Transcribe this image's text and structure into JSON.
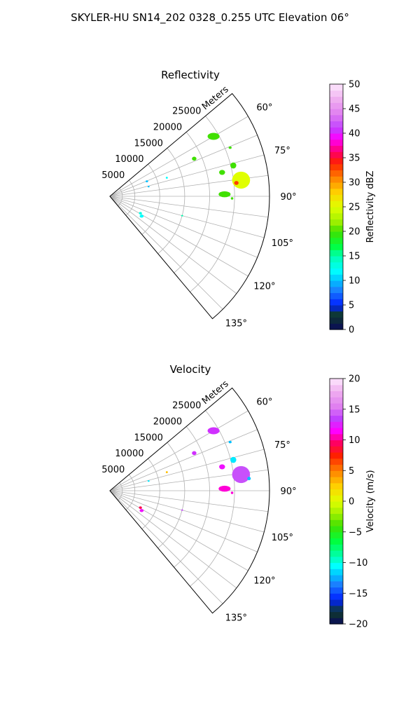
{
  "figure": {
    "suptitle": "SKYLER-HU  SN14_202  0328_0.255 UTC Elevation 06°"
  },
  "colors": {
    "grid": "#b0b0b0",
    "axis_line": "#000000"
  },
  "chart_data": [
    {
      "type": "polar-sector",
      "title": "Reflectivity",
      "radial_label": "Meters",
      "radial_ticks": [
        5000,
        10000,
        15000,
        20000,
        25000
      ],
      "radial_tick_labels": [
        "5000",
        "10000",
        "15000",
        "20000",
        "25000"
      ],
      "rlim": [
        0,
        32000
      ],
      "theta_ticks": [
        60,
        75,
        90,
        105,
        120,
        135
      ],
      "theta_tick_labels": [
        "60°",
        "75°",
        "90°",
        "105°",
        "120°",
        "135°"
      ],
      "theta_range_deg": [
        50,
        140
      ],
      "theta_direction": "clockwise-from-north",
      "grid": true,
      "colorbar": {
        "label": "Reflectivity dBZ",
        "range": [
          0,
          50
        ],
        "ticks": [
          0,
          5,
          10,
          15,
          20,
          25,
          30,
          35,
          40,
          45,
          50
        ],
        "tick_labels": [
          "0",
          "5",
          "10",
          "15",
          "20",
          "25",
          "30",
          "35",
          "40",
          "45",
          "50"
        ],
        "stops": [
          {
            "value": 0,
            "color": "#0a0a5a"
          },
          {
            "value": 3,
            "color": "#0f3a2a"
          },
          {
            "value": 5,
            "color": "#0020ff"
          },
          {
            "value": 8,
            "color": "#1a80ff"
          },
          {
            "value": 10,
            "color": "#00c0ff"
          },
          {
            "value": 12,
            "color": "#00ffff"
          },
          {
            "value": 15,
            "color": "#00ffb0"
          },
          {
            "value": 17,
            "color": "#00ff40"
          },
          {
            "value": 20,
            "color": "#40e000"
          },
          {
            "value": 22,
            "color": "#a0f000"
          },
          {
            "value": 25,
            "color": "#e0ff00"
          },
          {
            "value": 28,
            "color": "#ffd000"
          },
          {
            "value": 31,
            "color": "#ff8000"
          },
          {
            "value": 34,
            "color": "#ff2000"
          },
          {
            "value": 36,
            "color": "#ff0060"
          },
          {
            "value": 39,
            "color": "#ff00ff"
          },
          {
            "value": 41,
            "color": "#c040ff"
          },
          {
            "value": 44,
            "color": "#e080f0"
          },
          {
            "value": 47,
            "color": "#f0b0f0"
          },
          {
            "value": 50,
            "color": "#fde8fd"
          }
        ]
      },
      "echoes": [
        {
          "azimuth_deg": 60,
          "range_m": 24000,
          "width_m": 2400,
          "height_m": 1400,
          "value": 20
        },
        {
          "azimuth_deg": 83,
          "range_m": 26500,
          "width_m": 3600,
          "height_m": 3400,
          "value": 25
        },
        {
          "azimuth_deg": 84,
          "range_m": 25500,
          "width_m": 900,
          "height_m": 800,
          "value": 33
        },
        {
          "azimuth_deg": 89,
          "range_m": 23000,
          "width_m": 2400,
          "height_m": 1200,
          "value": 20
        },
        {
          "azimuth_deg": 76,
          "range_m": 25500,
          "width_m": 1200,
          "height_m": 1200,
          "value": 20
        },
        {
          "azimuth_deg": 78,
          "range_m": 23000,
          "width_m": 1200,
          "height_m": 1000,
          "value": 20
        },
        {
          "azimuth_deg": 66,
          "range_m": 18500,
          "width_m": 900,
          "height_m": 800,
          "value": 20
        },
        {
          "azimuth_deg": 68,
          "range_m": 26000,
          "width_m": 600,
          "height_m": 500,
          "value": 20
        },
        {
          "azimuth_deg": 91,
          "range_m": 24500,
          "width_m": 500,
          "height_m": 500,
          "value": 20
        },
        {
          "azimuth_deg": 72,
          "range_m": 12000,
          "width_m": 400,
          "height_m": 400,
          "value": 12
        },
        {
          "azimuth_deg": 68,
          "range_m": 8000,
          "width_m": 500,
          "height_m": 400,
          "value": 10
        },
        {
          "azimuth_deg": 76,
          "range_m": 8000,
          "width_m": 400,
          "height_m": 300,
          "value": 10
        },
        {
          "azimuth_deg": 119,
          "range_m": 7000,
          "width_m": 600,
          "height_m": 500,
          "value": 13
        },
        {
          "azimuth_deg": 122,
          "range_m": 7500,
          "width_m": 800,
          "height_m": 600,
          "value": 12
        },
        {
          "azimuth_deg": 105,
          "range_m": 15000,
          "width_m": 400,
          "height_m": 300,
          "value": 15
        }
      ]
    },
    {
      "type": "polar-sector",
      "title": "Velocity",
      "radial_label": "Meters",
      "radial_ticks": [
        5000,
        10000,
        15000,
        20000,
        25000
      ],
      "radial_tick_labels": [
        "5000",
        "10000",
        "15000",
        "20000",
        "25000"
      ],
      "rlim": [
        0,
        32000
      ],
      "theta_ticks": [
        60,
        75,
        90,
        105,
        120,
        135
      ],
      "theta_tick_labels": [
        "60°",
        "75°",
        "90°",
        "105°",
        "120°",
        "135°"
      ],
      "theta_range_deg": [
        50,
        140
      ],
      "theta_direction": "clockwise-from-north",
      "grid": true,
      "colorbar": {
        "label": "Velocity (m/s)",
        "range": [
          -20,
          20
        ],
        "ticks": [
          -20,
          -15,
          -10,
          -5,
          0,
          5,
          10,
          15,
          20
        ],
        "tick_labels": [
          "−20",
          "−15",
          "−10",
          "−5",
          "0",
          "5",
          "10",
          "15",
          "20"
        ],
        "stops": [
          {
            "value": -20,
            "color": "#0a0a5a"
          },
          {
            "value": -18,
            "color": "#0f3a2a"
          },
          {
            "value": -16,
            "color": "#0020ff"
          },
          {
            "value": -13.5,
            "color": "#1a80ff"
          },
          {
            "value": -12,
            "color": "#00c0ff"
          },
          {
            "value": -10.5,
            "color": "#00ffff"
          },
          {
            "value": -9,
            "color": "#00ffb0"
          },
          {
            "value": -6.5,
            "color": "#00ff40"
          },
          {
            "value": -4,
            "color": "#40e000"
          },
          {
            "value": -2,
            "color": "#a0f000"
          },
          {
            "value": 0,
            "color": "#e0ff00"
          },
          {
            "value": 2.5,
            "color": "#ffd000"
          },
          {
            "value": 5,
            "color": "#ff8000"
          },
          {
            "value": 7.5,
            "color": "#ff2000"
          },
          {
            "value": 9.5,
            "color": "#ff0060"
          },
          {
            "value": 11.5,
            "color": "#ff00ff"
          },
          {
            "value": 13.5,
            "color": "#c040ff"
          },
          {
            "value": 15.5,
            "color": "#e080f0"
          },
          {
            "value": 18,
            "color": "#f0b0f0"
          },
          {
            "value": 20,
            "color": "#fde8fd"
          }
        ]
      },
      "echoes": [
        {
          "azimuth_deg": 60,
          "range_m": 24000,
          "width_m": 2400,
          "height_m": 1400,
          "value": 13
        },
        {
          "azimuth_deg": 83,
          "range_m": 26500,
          "width_m": 3600,
          "height_m": 3400,
          "value": 14
        },
        {
          "azimuth_deg": 85,
          "range_m": 28000,
          "width_m": 700,
          "height_m": 700,
          "value": -12
        },
        {
          "azimuth_deg": 89,
          "range_m": 23000,
          "width_m": 2400,
          "height_m": 1200,
          "value": 11
        },
        {
          "azimuth_deg": 76,
          "range_m": 25500,
          "width_m": 1200,
          "height_m": 1200,
          "value": -11
        },
        {
          "azimuth_deg": 78,
          "range_m": 23000,
          "width_m": 1200,
          "height_m": 1000,
          "value": 12
        },
        {
          "azimuth_deg": 66,
          "range_m": 18500,
          "width_m": 900,
          "height_m": 800,
          "value": 13
        },
        {
          "azimuth_deg": 68,
          "range_m": 26000,
          "width_m": 600,
          "height_m": 500,
          "value": -12
        },
        {
          "azimuth_deg": 91,
          "range_m": 24500,
          "width_m": 500,
          "height_m": 500,
          "value": 11
        },
        {
          "azimuth_deg": 72,
          "range_m": 12000,
          "width_m": 400,
          "height_m": 400,
          "value": 3
        },
        {
          "azimuth_deg": 76,
          "range_m": 8000,
          "width_m": 400,
          "height_m": 300,
          "value": -11
        },
        {
          "azimuth_deg": 119,
          "range_m": 7000,
          "width_m": 600,
          "height_m": 500,
          "value": 9
        },
        {
          "azimuth_deg": 122,
          "range_m": 7500,
          "width_m": 800,
          "height_m": 600,
          "value": 12
        },
        {
          "azimuth_deg": 105,
          "range_m": 15000,
          "width_m": 400,
          "height_m": 300,
          "value": 14
        }
      ]
    }
  ]
}
